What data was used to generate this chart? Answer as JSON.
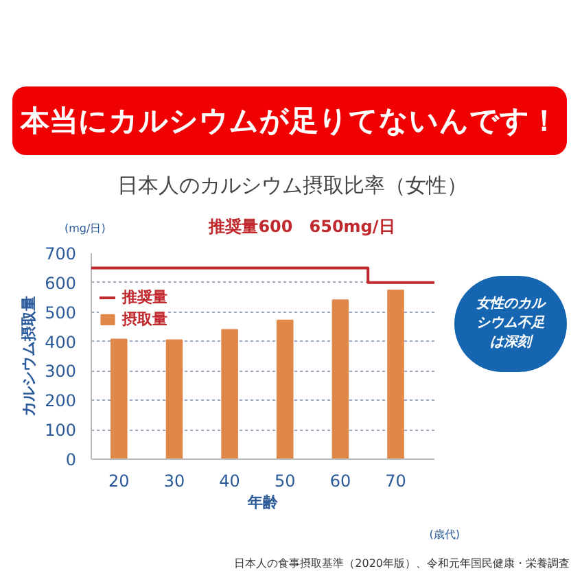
{
  "chart_data": {
    "type": "bar",
    "title": "本当にカルシウムが足りてないんです！",
    "subtitle": "日本人のカルシウム摂取比率（女性）",
    "xlabel": "年齢",
    "ylabel": "カルシウム摂取量",
    "x": [
      20,
      30,
      40,
      50,
      60,
      70
    ],
    "series": [
      {
        "name": "推奨量",
        "type": "line",
        "color": "#c0282d",
        "x": [
          15,
          65,
          65,
          77
        ],
        "values": [
          650,
          650,
          600,
          600
        ]
      },
      {
        "name": "摂取量",
        "color": "#e0874a",
        "values": [
          407,
          405,
          440,
          472,
          541,
          574
        ]
      }
    ],
    "xlim": [
      15,
      77
    ],
    "xticks": [
      20,
      30,
      40,
      50,
      60,
      70
    ],
    "ylim": [
      0,
      700
    ],
    "yticks": [
      0,
      100,
      200,
      300,
      400,
      500,
      600,
      700
    ],
    "grid": "y",
    "legend": "top left",
    "annotations": [
      "(mg/日)",
      "推奨量600　650mg/日",
      "(歳代)",
      "女性のカルシウム不足は深刻",
      "日本人の食事摂取基準（2020年版）、令和元年国民健康・栄養調査"
    ]
  }
}
